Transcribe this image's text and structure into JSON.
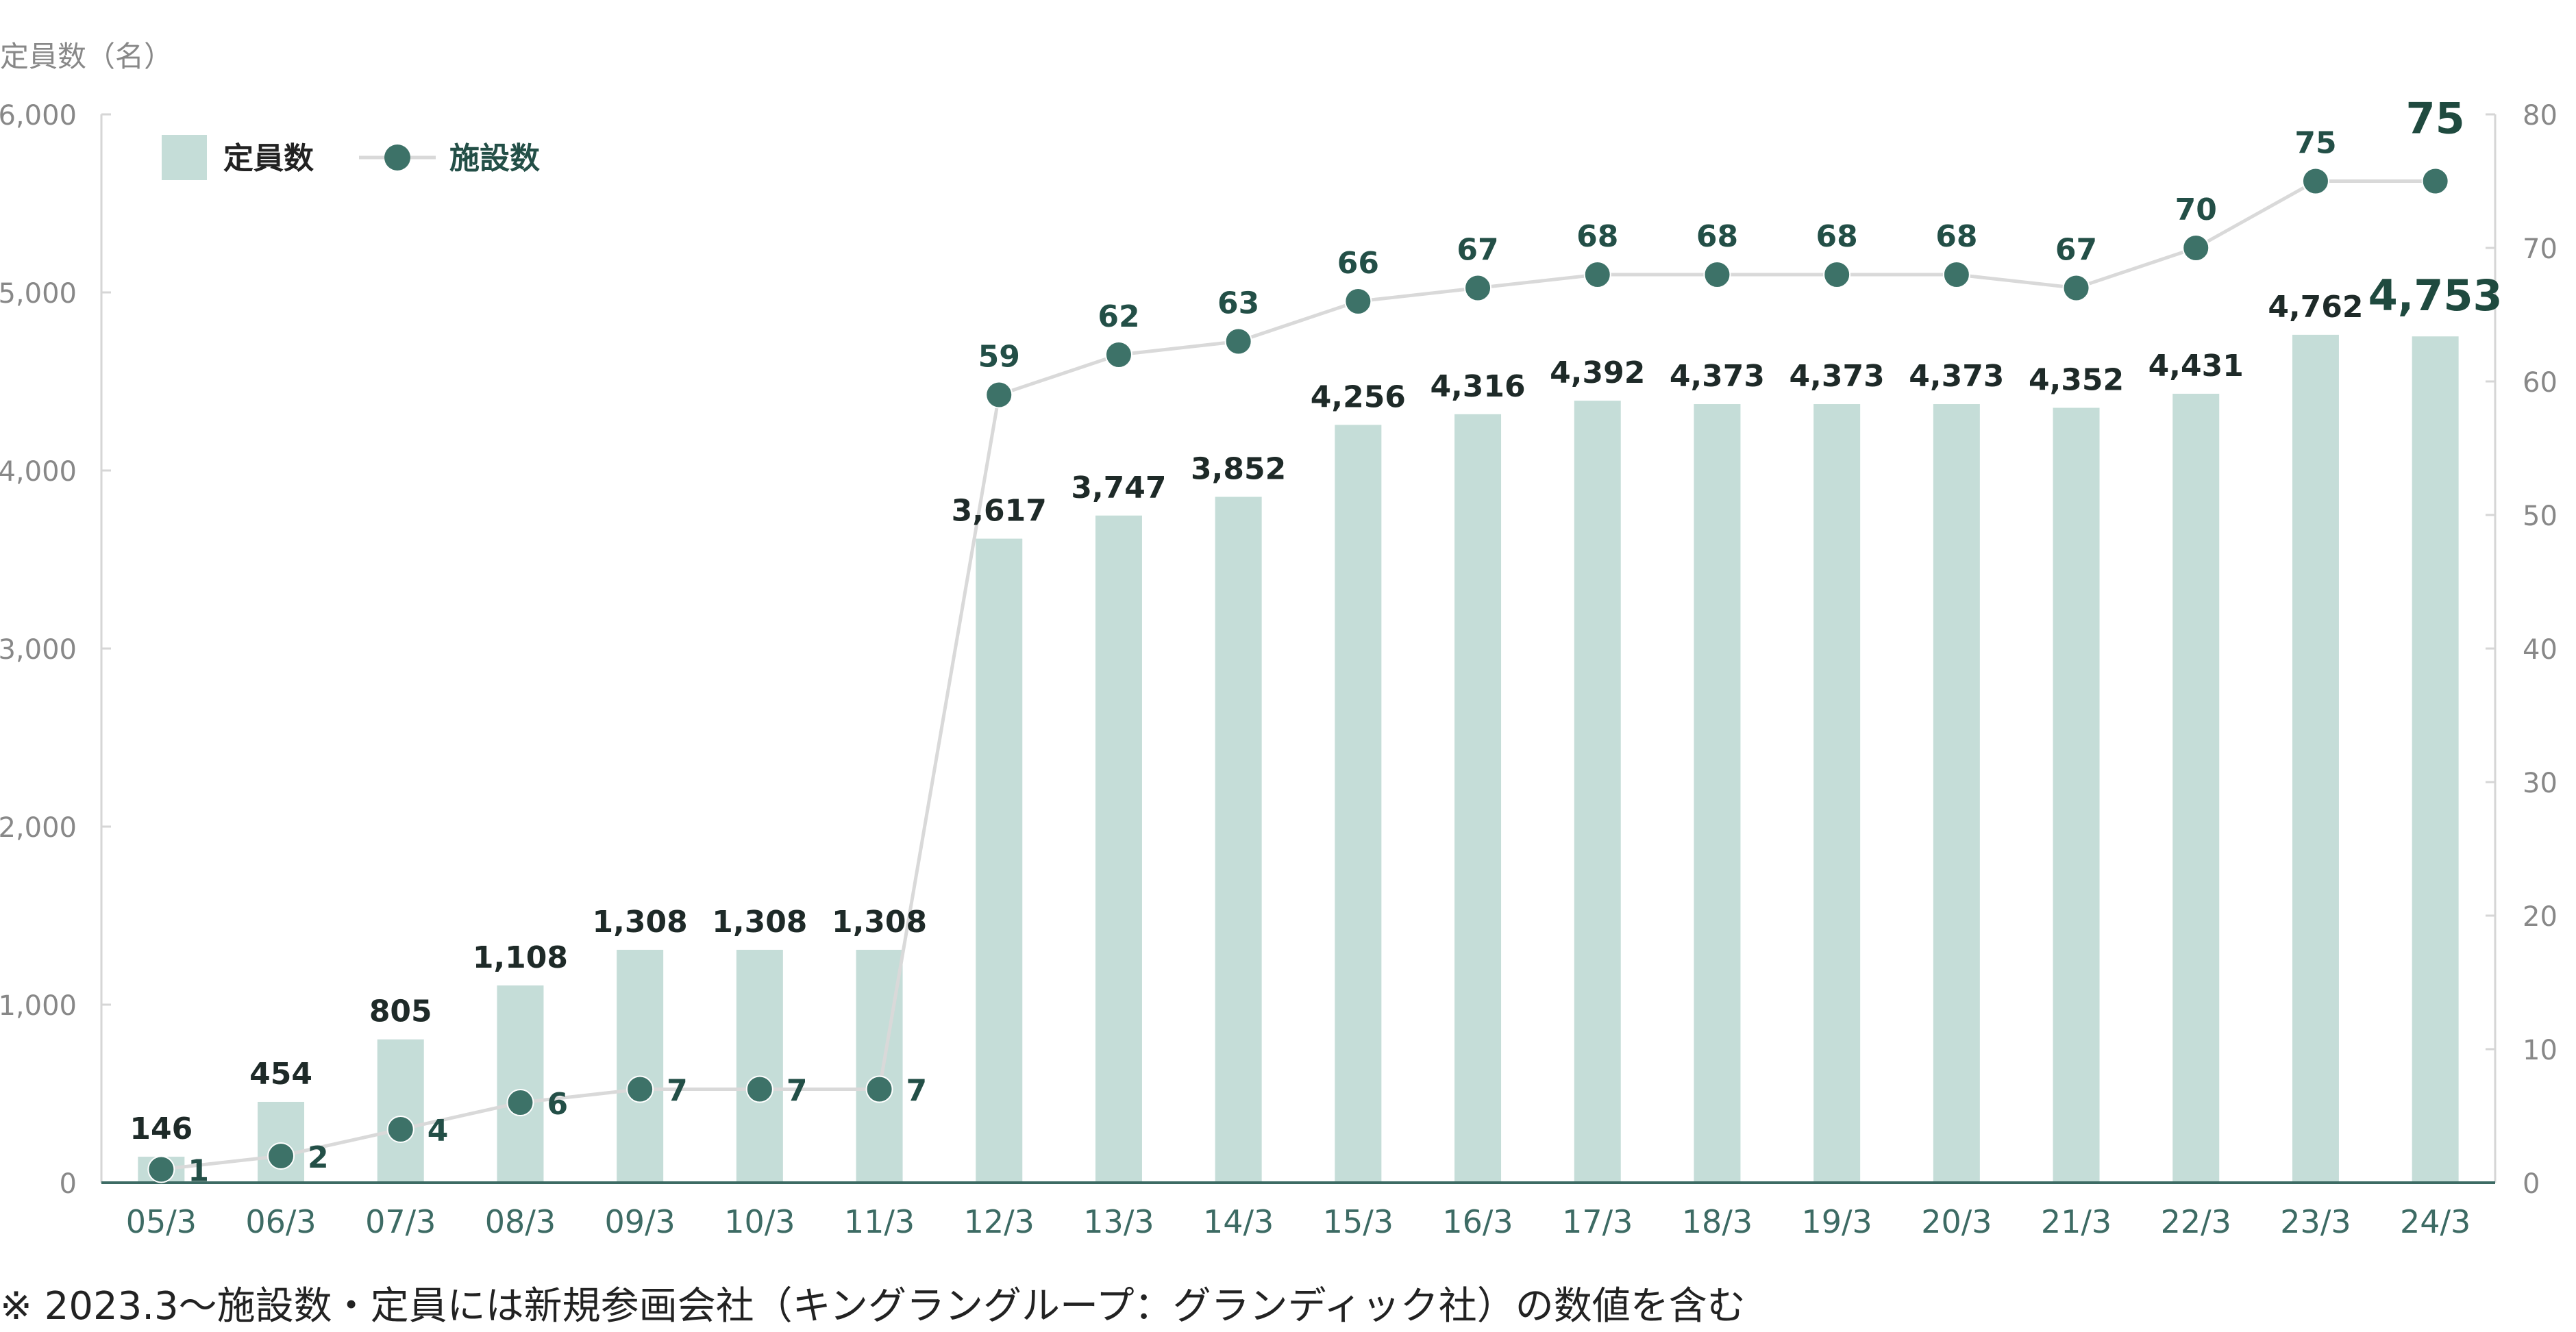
{
  "chart_data": {
    "type": "bar",
    "categories": [
      "05/3",
      "06/3",
      "07/3",
      "08/3",
      "09/3",
      "10/3",
      "11/3",
      "12/3",
      "13/3",
      "14/3",
      "15/3",
      "16/3",
      "17/3",
      "18/3",
      "19/3",
      "20/3",
      "21/3",
      "22/3",
      "23/3",
      "24/3"
    ],
    "series": [
      {
        "name": "定員数",
        "type": "bar",
        "axis": "left",
        "values": [
          146,
          454,
          805,
          1108,
          1308,
          1308,
          1308,
          3617,
          3747,
          3852,
          4256,
          4316,
          4392,
          4373,
          4373,
          4373,
          4352,
          4431,
          4762,
          4753
        ],
        "labels": [
          "146",
          "454",
          "805",
          "1,108",
          "1,308",
          "1,308",
          "1,308",
          "3,617",
          "3,747",
          "3,852",
          "4,256",
          "4,316",
          "4,392",
          "4,373",
          "4,373",
          "4,373",
          "4,352",
          "4,431",
          "4,762",
          "4,753"
        ],
        "color": "#c5ddd8"
      },
      {
        "name": "施設数",
        "type": "line",
        "axis": "right",
        "values": [
          1,
          2,
          4,
          6,
          7,
          7,
          7,
          59,
          62,
          63,
          66,
          67,
          68,
          68,
          68,
          68,
          67,
          70,
          75,
          75
        ],
        "labels": [
          "1",
          "2",
          "4",
          "6",
          "7",
          "7",
          "7",
          "59",
          "62",
          "63",
          "66",
          "67",
          "68",
          "68",
          "68",
          "68",
          "67",
          "70",
          "75",
          "75"
        ],
        "color": "#3d7268",
        "line_color": "#d9d9d9"
      }
    ],
    "ylabel": "定員数（名）",
    "ylim": [
      0,
      6000
    ],
    "y_ticks": [
      "0",
      "1,000",
      "2,000",
      "3,000",
      "4,000",
      "5,000",
      "6,000"
    ],
    "y_tick_values": [
      0,
      1000,
      2000,
      3000,
      4000,
      5000,
      6000
    ],
    "y2lim": [
      0,
      80
    ],
    "y2_ticks": [
      "0",
      "10",
      "20",
      "30",
      "40",
      "50",
      "60",
      "70",
      "80"
    ],
    "y2_tick_values": [
      0,
      10,
      20,
      30,
      40,
      50,
      60,
      70,
      80
    ],
    "legend": {
      "position": "top-left",
      "items": [
        "定員数",
        "施設数"
      ]
    },
    "grid": false,
    "highlight_last": true,
    "colors": {
      "axis": "#3d6b64",
      "tick_text": "#888888",
      "category_text": "#3d6b64",
      "bar_label": "#1e2a28",
      "line_label": "#234f47",
      "highlight": "#1f4a3f"
    }
  },
  "footnote": "※ 2023.3〜施設数・定員には新規参画会社（キングラングループ：グランディック社）の数値を含む"
}
